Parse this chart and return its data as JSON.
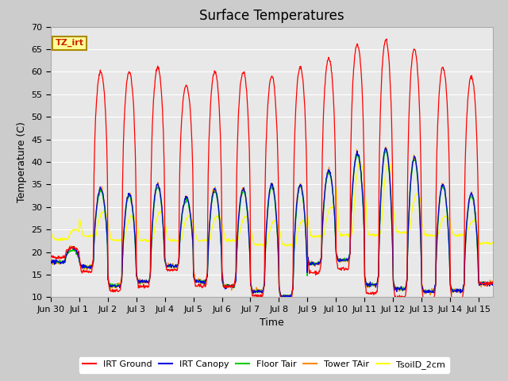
{
  "title": "Surface Temperatures",
  "xlabel": "Time",
  "ylabel": "Temperature (C)",
  "ylim": [
    10,
    70
  ],
  "yticks": [
    10,
    15,
    20,
    25,
    30,
    35,
    40,
    45,
    50,
    55,
    60,
    65,
    70
  ],
  "xtick_labels": [
    "Jun 30",
    "Jul 1",
    "Jul 2",
    "Jul 3",
    "Jul 4",
    "Jul 5",
    "Jul 6",
    "Jul 7",
    "Jul 8",
    "Jul 9",
    "Jul 10",
    "Jul 11",
    "Jul 12",
    "Jul 13",
    "Jul 14",
    "Jul 15"
  ],
  "annotation_text": "TZ_irt",
  "series_colors": {
    "IRT Ground": "#ff0000",
    "IRT Canopy": "#0000dd",
    "Floor Tair": "#00cc00",
    "Tower TAir": "#ff8800",
    "TsoilD_2cm": "#ffff00"
  },
  "legend_labels": [
    "IRT Ground",
    "IRT Canopy",
    "Floor Tair",
    "Tower TAir",
    "TsoilD_2cm"
  ],
  "title_fontsize": 12,
  "label_fontsize": 9,
  "tick_fontsize": 8,
  "fig_bg": "#cccccc",
  "plot_bg": "#e8e8e8",
  "grid_color": "#ffffff",
  "seed": 42,
  "irt_ground_peaks": [
    21,
    60,
    60,
    61,
    57,
    60,
    60,
    59,
    61,
    63,
    66,
    67,
    65,
    61,
    59,
    13
  ],
  "irt_ground_nights": [
    19,
    19,
    15,
    16,
    19,
    16,
    16,
    14,
    13,
    19,
    20,
    15,
    14,
    13,
    13,
    13
  ],
  "canopy_peaks": [
    21,
    34,
    33,
    35,
    32,
    34,
    34,
    35,
    35,
    38,
    42,
    43,
    41,
    35,
    33,
    13
  ],
  "canopy_nights": [
    18,
    18,
    14,
    15,
    18,
    15,
    14,
    13,
    12,
    19,
    20,
    15,
    14,
    13,
    13,
    13
  ],
  "soil_peaks": [
    25,
    29,
    28,
    29,
    28,
    28,
    28,
    27,
    27,
    30,
    40,
    40,
    33,
    28,
    27,
    22
  ],
  "soil_nights": [
    23,
    24,
    23,
    23,
    23,
    23,
    23,
    22,
    22,
    24,
    25,
    25,
    25,
    24,
    24,
    22
  ]
}
